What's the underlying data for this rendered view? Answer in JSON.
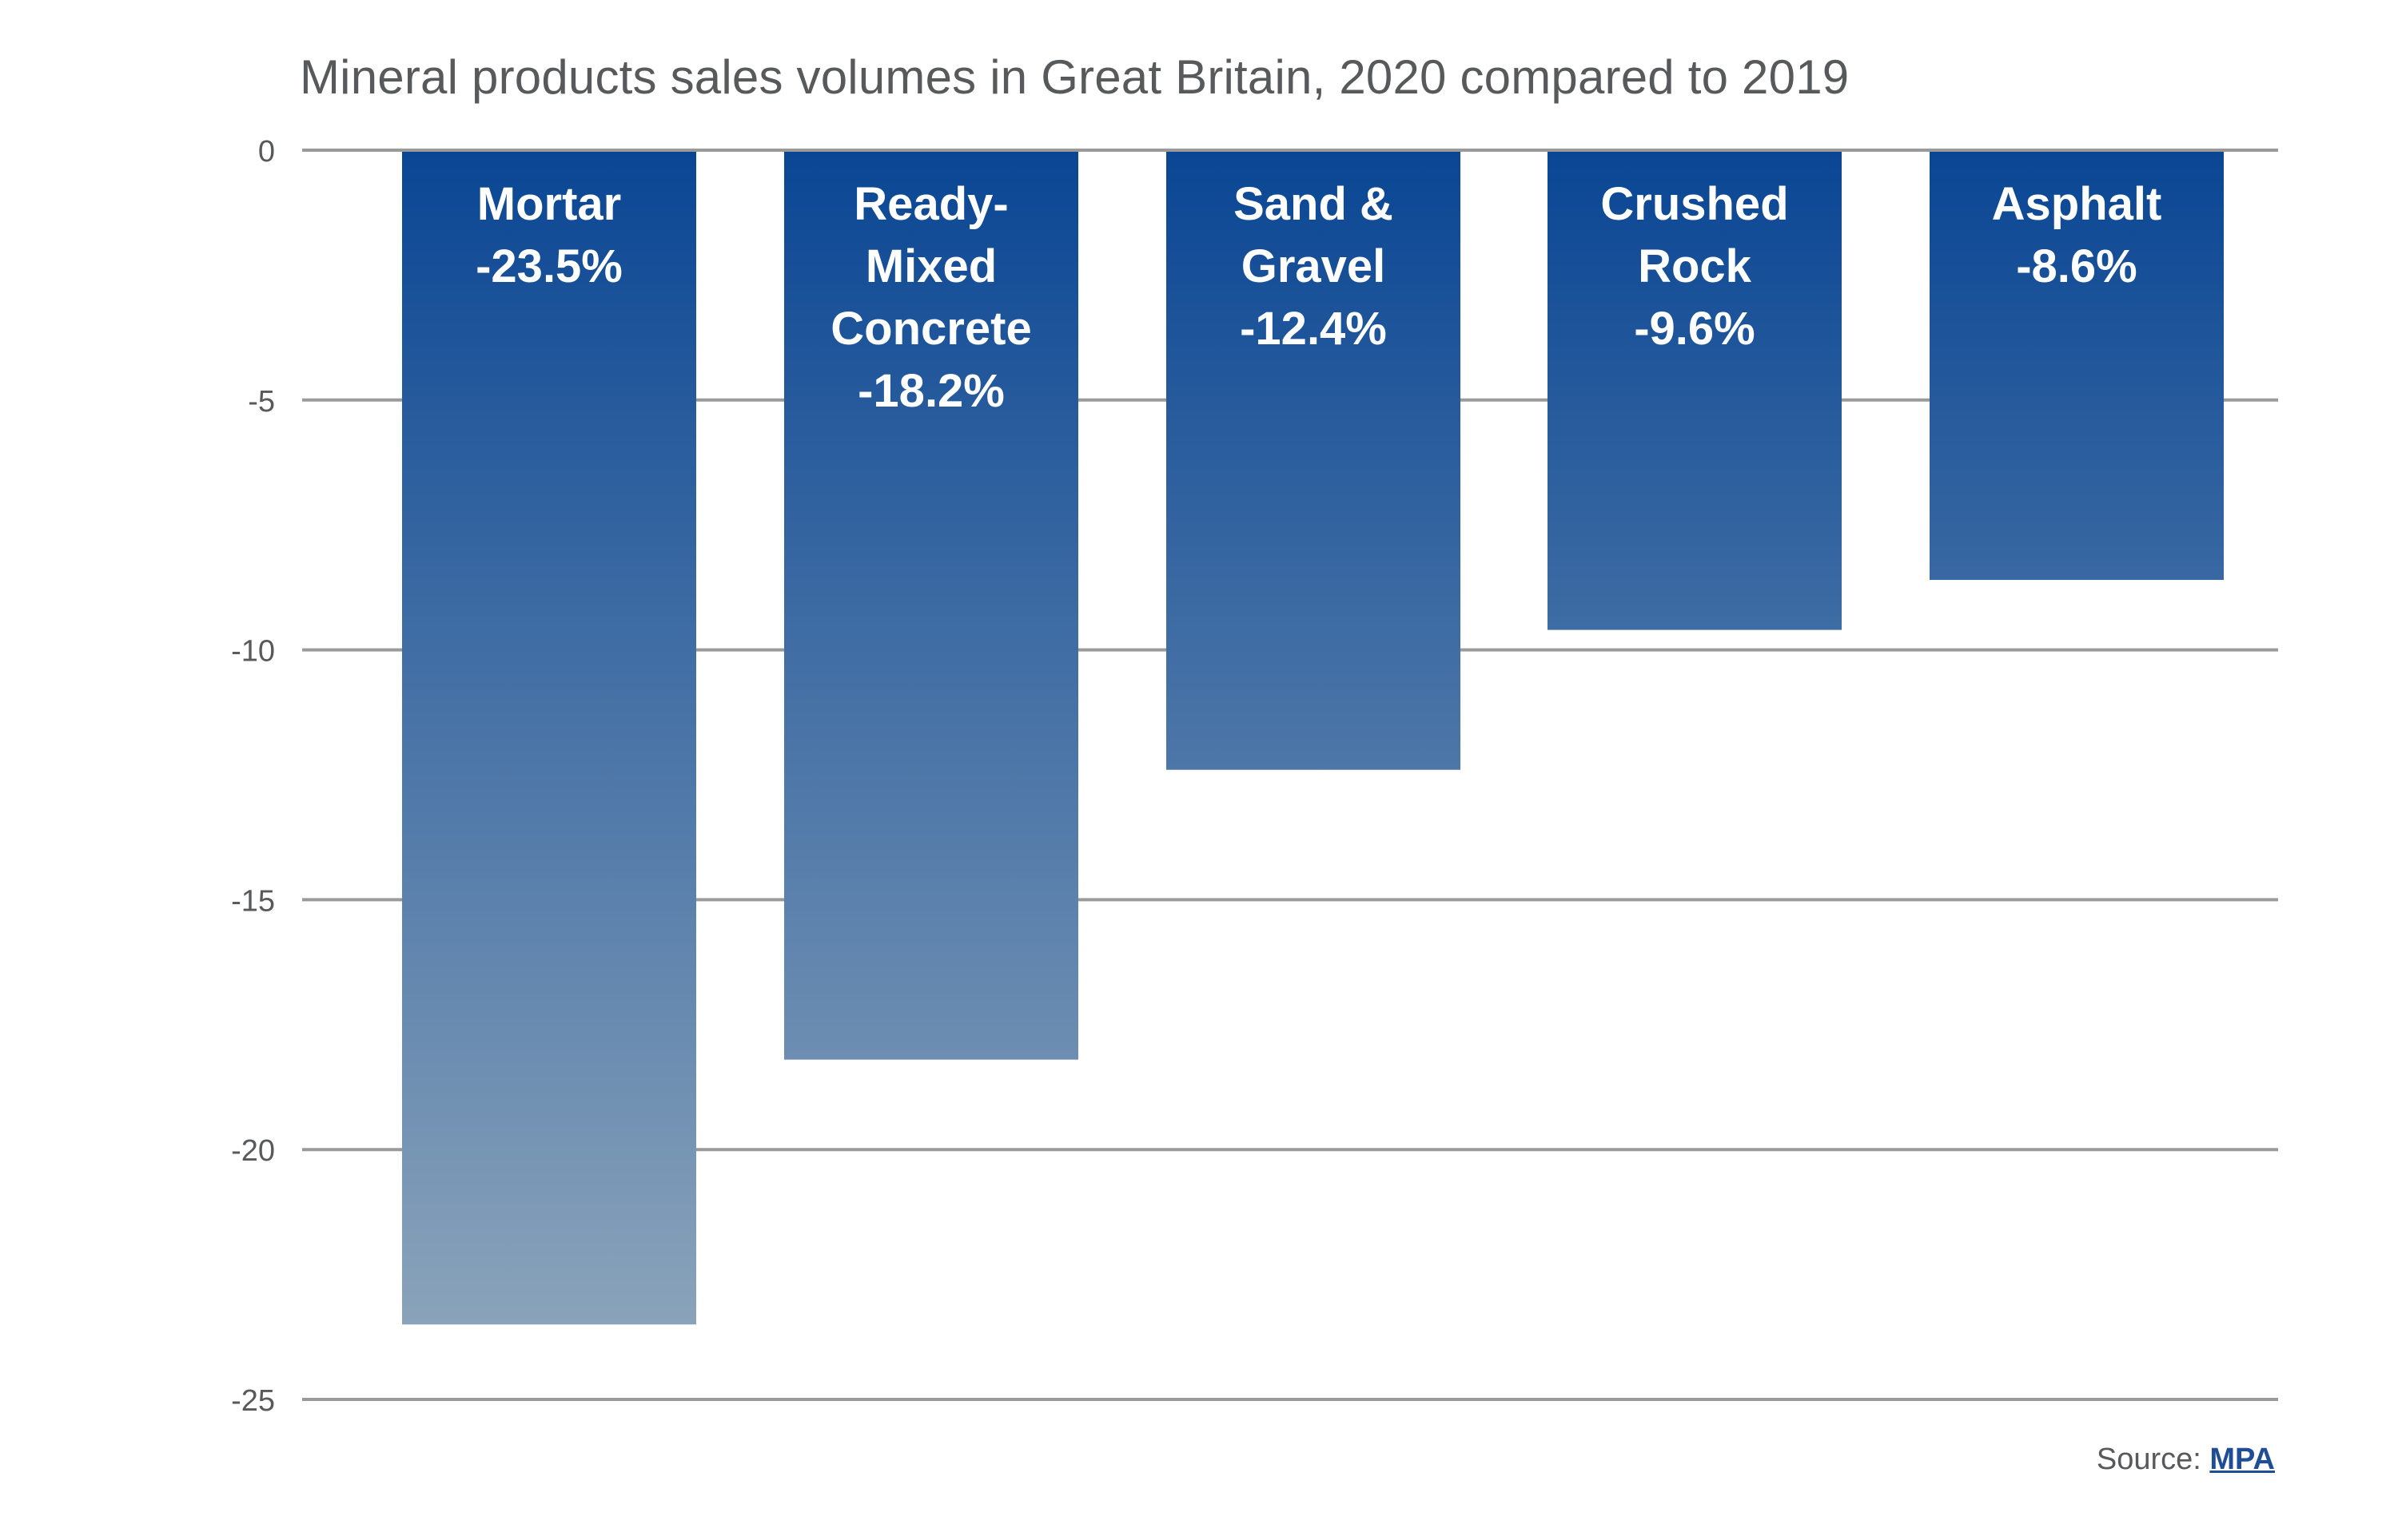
{
  "title": "Mineral products sales volumes in Great Britain, 2020 compared to 2019",
  "source": {
    "prefix": "Source: ",
    "link_text": "MPA"
  },
  "colors": {
    "bar_top": "#0a4694",
    "bar_bottom": "#8aa3ba",
    "gridline": "#9a9a9a",
    "tick_text": "#58595b",
    "label_text": "#ffffff",
    "title_text": "#58595b",
    "link": "#1f4e96"
  },
  "chart_data": {
    "type": "bar",
    "title": "Mineral products sales volumes in Great Britain, 2020 compared to 2019",
    "xlabel": "",
    "ylabel": "",
    "ylim": [
      -25,
      0
    ],
    "yticks": [
      0,
      -5,
      -10,
      -15,
      -20,
      -25
    ],
    "ytick_labels": [
      "0",
      "-5",
      "-10",
      "-15",
      "-20",
      "-25"
    ],
    "grid": true,
    "legend": "none",
    "categories": [
      "Mortar",
      "Ready-Mixed Concrete",
      "Sand & Gravel",
      "Crushed Rock",
      "Asphalt"
    ],
    "values": [
      -23.5,
      -18.2,
      -12.4,
      -9.6,
      -8.6
    ],
    "bar_labels": [
      [
        "Mortar",
        "-23.5%"
      ],
      [
        "Ready-",
        "Mixed",
        "Concrete",
        "-18.2%"
      ],
      [
        "Sand &",
        "Gravel",
        "-12.4%"
      ],
      [
        "Crushed",
        "Rock",
        "-9.6%"
      ],
      [
        "Asphalt",
        "-8.6%"
      ]
    ]
  }
}
